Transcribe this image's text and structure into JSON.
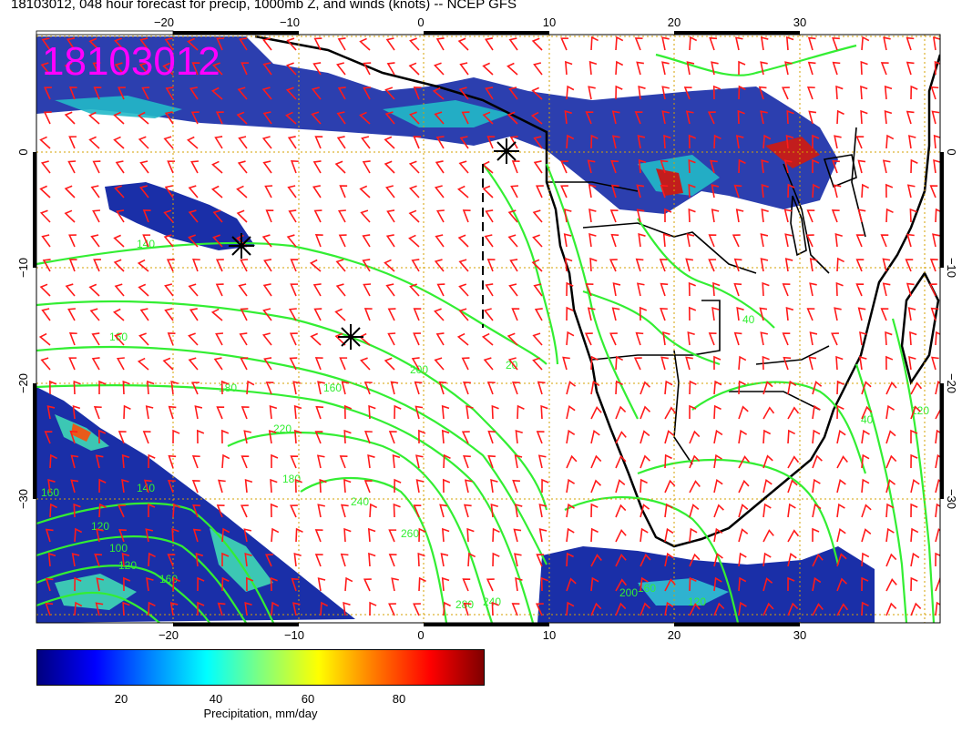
{
  "title": "18103012, 048 hour forecast for precip, 1000mb Z, and winds (knots) -- NCEP GFS",
  "stamp": "18103012",
  "lon_ticks": [
    "−20",
    "−10",
    "0",
    "10",
    "20",
    "30"
  ],
  "lat_ticks": [
    "0",
    "−10",
    "−20",
    "−30"
  ],
  "colorbar": {
    "ticks": [
      "20",
      "40",
      "60",
      "80"
    ],
    "label": "Precipitation, mm/day",
    "colors": [
      "#00007f",
      "#0000ff",
      "#007fff",
      "#00ffff",
      "#7fff7f",
      "#ffff00",
      "#ff7f00",
      "#ff0000",
      "#7f0000"
    ]
  },
  "colors": {
    "contours": "#33ee33",
    "barbs": "#ff1a1a",
    "coast": "#000000",
    "grid": "#d4a100",
    "stamp": "#ff00ff"
  },
  "contour_labels": [
    "140",
    "160",
    "180",
    "160",
    "200",
    "220",
    "240",
    "260",
    "180",
    "160",
    "140",
    "120",
    "100",
    "120",
    "160",
    "200",
    "240",
    "280",
    "120",
    "160",
    "40",
    "120",
    "20",
    "40"
  ]
}
